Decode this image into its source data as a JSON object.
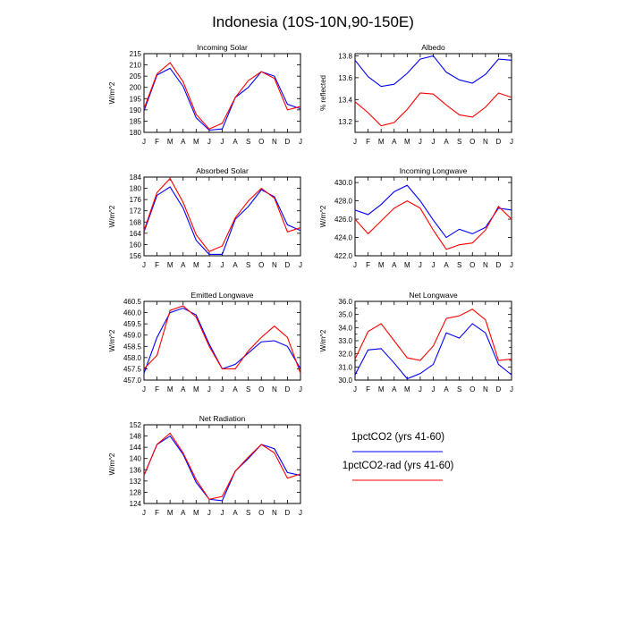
{
  "figure": {
    "title": "Indonesia (10S-10N,90-150E)"
  },
  "legend": {
    "entries": [
      {
        "name": "1pctCO2 (yrs 41-60)",
        "color": "#0000ff"
      },
      {
        "name": "1pctCO2-rad (yrs 41-60)",
        "color": "#ff0000"
      }
    ]
  },
  "chart_data": [
    {
      "type": "line",
      "title": "Incoming Solar",
      "ylabel": "W/m^2",
      "categories": [
        "J",
        "F",
        "M",
        "A",
        "M",
        "J",
        "J",
        "A",
        "S",
        "O",
        "N",
        "D",
        "J"
      ],
      "ylim": [
        180,
        215
      ],
      "yticks": [
        180,
        185,
        190,
        195,
        200,
        205,
        210,
        215
      ],
      "ytick_labels": [
        "180",
        "185",
        "190",
        "195",
        "200",
        "205",
        "210",
        "215"
      ],
      "series": [
        {
          "name": "1pctCO2 (yrs 41-60)",
          "color": "#0000ff",
          "values": [
            189.5,
            205.5,
            208.5,
            200.5,
            186.5,
            181.0,
            181.5,
            195.5,
            200.0,
            207.0,
            205.0,
            192.5,
            190.5
          ]
        },
        {
          "name": "1pctCO2-rad (yrs 41-60)",
          "color": "#ff0000",
          "values": [
            190.5,
            206.0,
            211.0,
            202.5,
            188.0,
            181.5,
            184.0,
            195.5,
            203.0,
            207.0,
            204.0,
            190.0,
            191.5
          ]
        }
      ]
    },
    {
      "type": "line",
      "title": "Albedo",
      "ylabel": "% reflected",
      "categories": [
        "J",
        "F",
        "M",
        "A",
        "M",
        "J",
        "J",
        "A",
        "S",
        "O",
        "N",
        "D",
        "J"
      ],
      "ylim": [
        13.1,
        13.82
      ],
      "yticks": [
        13.2,
        13.4,
        13.6,
        13.8
      ],
      "ytick_labels": [
        "13.2",
        "13.4",
        "13.6",
        "13.8"
      ],
      "series": [
        {
          "name": "1pctCO2 (yrs 41-60)",
          "color": "#0000ff",
          "values": [
            13.76,
            13.61,
            13.52,
            13.54,
            13.64,
            13.77,
            13.8,
            13.65,
            13.58,
            13.55,
            13.63,
            13.77,
            13.76
          ]
        },
        {
          "name": "1pctCO2-rad (yrs 41-60)",
          "color": "#ff0000",
          "values": [
            13.38,
            13.28,
            13.16,
            13.19,
            13.31,
            13.46,
            13.45,
            13.35,
            13.26,
            13.24,
            13.33,
            13.46,
            13.42
          ]
        }
      ]
    },
    {
      "type": "line",
      "title": "Absorbed Solar",
      "ylabel": "W/m^2",
      "categories": [
        "J",
        "F",
        "M",
        "A",
        "M",
        "J",
        "J",
        "A",
        "S",
        "O",
        "N",
        "D",
        "J"
      ],
      "ylim": [
        156,
        184
      ],
      "yticks": [
        156,
        160,
        164,
        168,
        172,
        176,
        180,
        184
      ],
      "ytick_labels": [
        "156",
        "160",
        "164",
        "168",
        "172",
        "176",
        "180",
        "184"
      ],
      "series": [
        {
          "name": "1pctCO2 (yrs 41-60)",
          "color": "#0000ff",
          "values": [
            164.5,
            177.5,
            180.5,
            173.0,
            161.5,
            156.5,
            156.5,
            169.0,
            173.5,
            179.5,
            177.0,
            167.0,
            165.0
          ]
        },
        {
          "name": "1pctCO2-rad (yrs 41-60)",
          "color": "#ff0000",
          "values": [
            165.0,
            178.5,
            183.5,
            175.0,
            163.5,
            157.5,
            159.5,
            169.5,
            175.5,
            180.0,
            176.5,
            164.5,
            166.0
          ]
        }
      ]
    },
    {
      "type": "line",
      "title": "Incoming Longwave",
      "ylabel": "W/m^2",
      "categories": [
        "J",
        "F",
        "M",
        "A",
        "M",
        "J",
        "J",
        "A",
        "S",
        "O",
        "N",
        "D",
        "J"
      ],
      "ylim": [
        422.0,
        430.6
      ],
      "yticks": [
        422,
        424,
        426,
        428,
        430
      ],
      "ytick_labels": [
        "422.0",
        "424.0",
        "426.0",
        "428.0",
        "430.0"
      ],
      "series": [
        {
          "name": "1pctCO2 (yrs 41-60)",
          "color": "#0000ff",
          "values": [
            427.0,
            426.5,
            427.6,
            429.0,
            429.7,
            428.0,
            425.9,
            424.0,
            424.9,
            424.4,
            425.1,
            427.2,
            427.0
          ]
        },
        {
          "name": "1pctCO2-rad (yrs 41-60)",
          "color": "#ff0000",
          "values": [
            426.0,
            424.4,
            425.8,
            427.2,
            428.0,
            427.2,
            424.8,
            422.7,
            423.2,
            423.4,
            424.8,
            427.4,
            426.0
          ]
        }
      ]
    },
    {
      "type": "line",
      "title": "Emitted Longwave",
      "ylabel": "W/m^2",
      "categories": [
        "J",
        "F",
        "M",
        "A",
        "M",
        "J",
        "J",
        "A",
        "S",
        "O",
        "N",
        "D",
        "J"
      ],
      "ylim": [
        457.0,
        460.5
      ],
      "yticks": [
        457,
        457.5,
        458,
        458.5,
        459,
        459.5,
        460,
        460.5
      ],
      "ytick_labels": [
        "457.0",
        "457.5",
        "458.0",
        "458.5",
        "459.0",
        "459.5",
        "460.0",
        "460.5"
      ],
      "series": [
        {
          "name": "1pctCO2 (yrs 41-60)",
          "color": "#0000ff",
          "values": [
            457.3,
            458.9,
            460.0,
            460.2,
            459.9,
            458.6,
            457.5,
            457.7,
            458.2,
            458.7,
            458.75,
            458.5,
            457.5
          ]
        },
        {
          "name": "1pctCO2-rad (yrs 41-60)",
          "color": "#ff0000",
          "values": [
            457.5,
            458.1,
            460.1,
            460.3,
            459.8,
            458.5,
            457.5,
            457.5,
            458.3,
            458.9,
            459.4,
            458.9,
            457.3
          ]
        }
      ]
    },
    {
      "type": "line",
      "title": "Net Longwave",
      "ylabel": "W/m^2",
      "categories": [
        "J",
        "F",
        "M",
        "A",
        "M",
        "J",
        "J",
        "A",
        "S",
        "O",
        "N",
        "D",
        "J"
      ],
      "ylim": [
        30.0,
        36.0
      ],
      "yticks": [
        30,
        30.5,
        31,
        31.5,
        32,
        32.5,
        33,
        33.5,
        34,
        34.5,
        35,
        35.5,
        36
      ],
      "ytick_labels": [
        "30.0",
        "",
        "31.0",
        "",
        "32.0",
        "",
        "33.0",
        "",
        "34.0",
        "",
        "35.0",
        "",
        "36.0"
      ],
      "series": [
        {
          "name": "1pctCO2 (yrs 41-60)",
          "color": "#0000ff",
          "values": [
            30.4,
            32.3,
            32.4,
            31.3,
            30.1,
            30.5,
            31.2,
            33.6,
            33.2,
            34.3,
            33.6,
            31.2,
            30.4
          ]
        },
        {
          "name": "1pctCO2-rad (yrs 41-60)",
          "color": "#ff0000",
          "values": [
            31.6,
            33.7,
            34.3,
            33.0,
            31.7,
            31.5,
            32.6,
            34.7,
            34.9,
            35.4,
            34.6,
            31.5,
            31.6
          ]
        }
      ]
    },
    {
      "type": "line",
      "title": "Net Radiation",
      "ylabel": "W/m^2",
      "categories": [
        "J",
        "F",
        "M",
        "A",
        "M",
        "J",
        "J",
        "A",
        "S",
        "O",
        "N",
        "D",
        "J"
      ],
      "ylim": [
        124,
        152
      ],
      "yticks": [
        124,
        128,
        132,
        136,
        140,
        144,
        148,
        152
      ],
      "ytick_labels": [
        "124",
        "128",
        "132",
        "136",
        "140",
        "144",
        "148",
        "152"
      ],
      "series": [
        {
          "name": "1pctCO2 (yrs 41-60)",
          "color": "#0000ff",
          "values": [
            134.0,
            145.0,
            148.0,
            141.5,
            131.5,
            125.5,
            125.0,
            135.5,
            140.0,
            145.0,
            143.5,
            135.0,
            134.0
          ]
        },
        {
          "name": "1pctCO2-rad (yrs 41-60)",
          "color": "#ff0000",
          "values": [
            134.0,
            145.0,
            149.0,
            142.0,
            132.5,
            125.5,
            126.5,
            135.5,
            140.5,
            145.0,
            142.0,
            133.0,
            134.5
          ]
        }
      ]
    }
  ]
}
